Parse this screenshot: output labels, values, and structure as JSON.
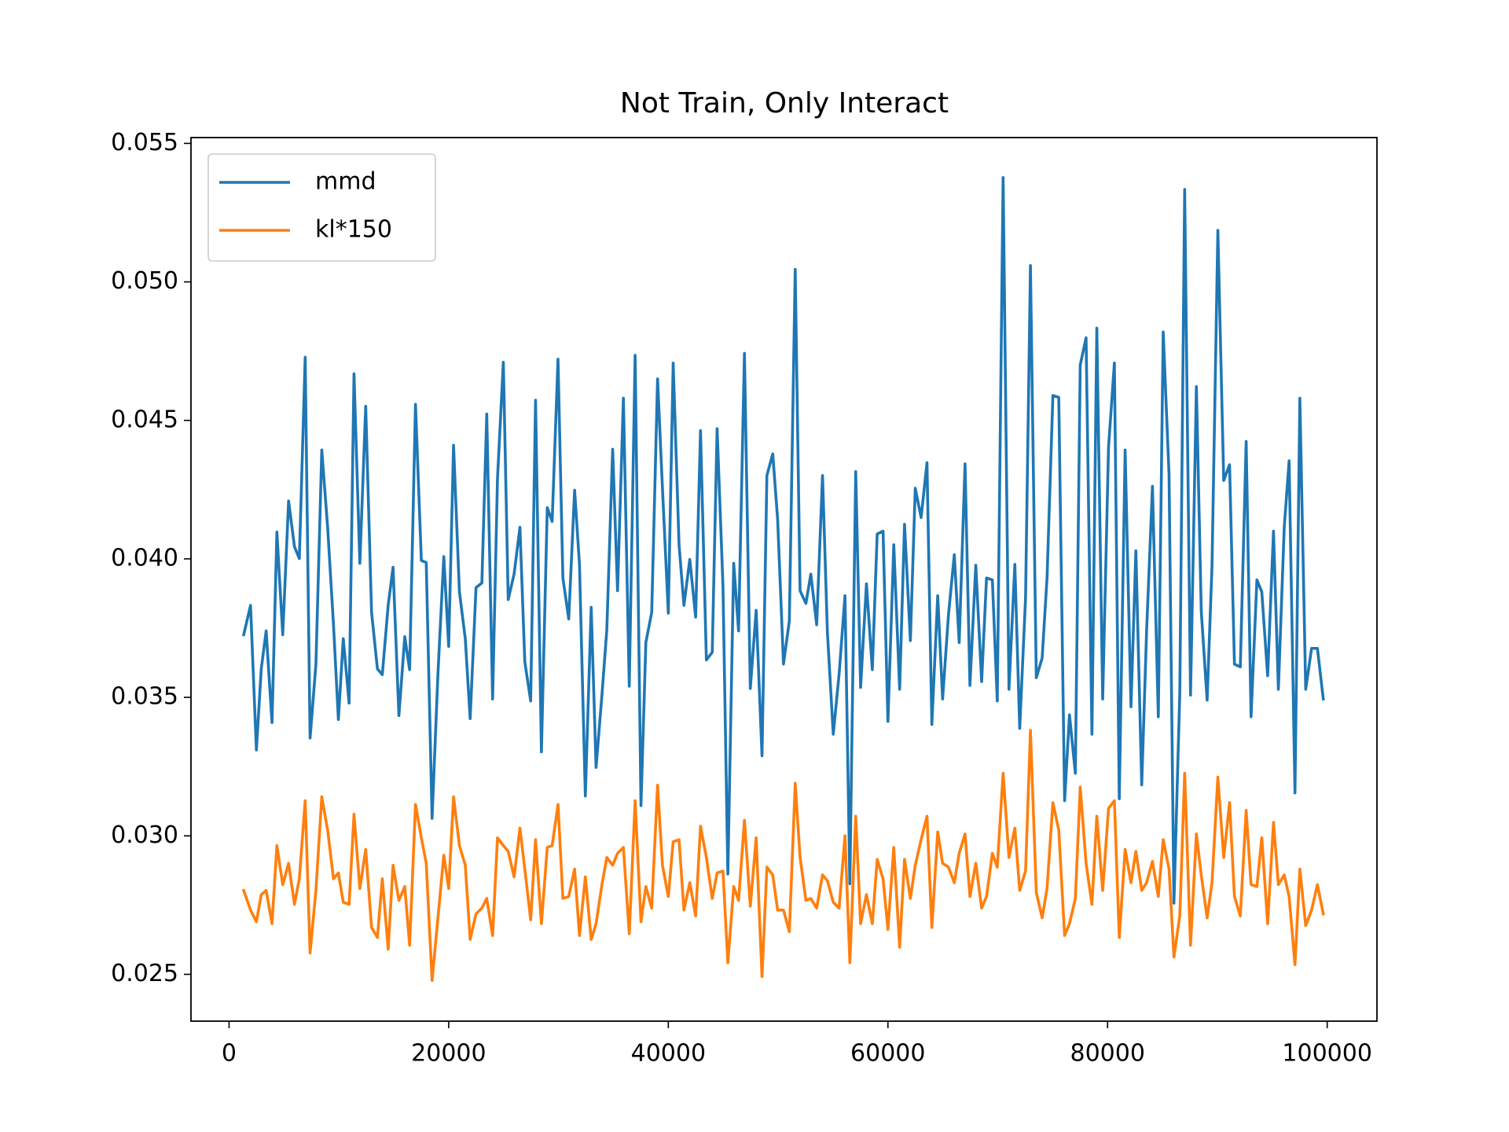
{
  "chart_data": {
    "type": "line",
    "title": "Not Train, Only Interact",
    "x": [
      1333,
      1956,
      2489,
      2933,
      3378,
      3911,
      4356,
      4889,
      5422,
      5956,
      6400,
      6933,
      7378,
      7911,
      8444,
      8978,
      9511,
      9956,
      10400,
      10933,
      11378,
      11911,
      12444,
      12978,
      13511,
      13956,
      14489,
      14933,
      15467,
      16000,
      16444,
      16978,
      17511,
      17956,
      18489,
      19022,
      19556,
      20000,
      20444,
      20978,
      21511,
      21956,
      22489,
      23022,
      23467,
      24000,
      24444,
      24978,
      25422,
      25956,
      26489,
      26933,
      27467,
      27911,
      28444,
      28978,
      29422,
      29956,
      30400,
      30933,
      31467,
      31911,
      32444,
      32978,
      33422,
      33956,
      34400,
      34933,
      35378,
      35911,
      36444,
      36978,
      37511,
      37956,
      38489,
      39022,
      39467,
      40000,
      40444,
      40978,
      41422,
      41956,
      42489,
      42933,
      43467,
      44000,
      44444,
      44978,
      45422,
      45956,
      46400,
      46933,
      47467,
      48000,
      48533,
      48978,
      49511,
      49956,
      50489,
      51022,
      51556,
      52000,
      52533,
      52978,
      53511,
      54044,
      54489,
      55022,
      55556,
      56089,
      56533,
      57067,
      57511,
      58044,
      58578,
      59022,
      59556,
      60000,
      60533,
      61067,
      61511,
      62044,
      62489,
      63022,
      63556,
      64000,
      64533,
      64978,
      65511,
      66044,
      66489,
      67022,
      67467,
      68000,
      68533,
      68978,
      69511,
      69956,
      70489,
      71022,
      71556,
      72000,
      72533,
      72978,
      73511,
      74044,
      74489,
      75022,
      75556,
      76089,
      76533,
      77067,
      77511,
      78044,
      78578,
      79022,
      79556,
      80089,
      80622,
      81067,
      81600,
      82133,
      82578,
      83111,
      83556,
      84089,
      84622,
      85067,
      85600,
      86044,
      86578,
      87022,
      87556,
      88089,
      88533,
      89067,
      89511,
      90044,
      90578,
      91111,
      91556,
      92089,
      92622,
      93067,
      93600,
      94044,
      94578,
      95111,
      95556,
      96089,
      96533,
      97067,
      97511,
      98044,
      98578,
      99111,
      99644
    ],
    "series": [
      {
        "name": "mmd",
        "color": "#1f77b4",
        "values": [
          0.03726,
          0.03832,
          0.0331,
          0.03603,
          0.0374,
          0.03409,
          0.04097,
          0.03726,
          0.04209,
          0.04044,
          0.04001,
          0.04728,
          0.03353,
          0.0362,
          0.04393,
          0.04114,
          0.03762,
          0.0342,
          0.03712,
          0.03479,
          0.04668,
          0.03984,
          0.04551,
          0.03807,
          0.03603,
          0.03582,
          0.03832,
          0.0397,
          0.03434,
          0.03719,
          0.036,
          0.04558,
          0.03994,
          0.03987,
          0.03063,
          0.03585,
          0.04008,
          0.03684,
          0.0441,
          0.03881,
          0.03712,
          0.03423,
          0.03896,
          0.03913,
          0.04523,
          0.03494,
          0.0429,
          0.0471,
          0.03853,
          0.03945,
          0.04114,
          0.03628,
          0.03487,
          0.04573,
          0.03303,
          0.04185,
          0.04135,
          0.04721,
          0.03931,
          0.03783,
          0.04248,
          0.0398,
          0.03144,
          0.03825,
          0.03247,
          0.03508,
          0.03744,
          0.04396,
          0.03885,
          0.0458,
          0.0354,
          0.04735,
          0.03109,
          0.03698,
          0.03807,
          0.0465,
          0.04255,
          0.03804,
          0.04707,
          0.04051,
          0.03832,
          0.03998,
          0.0379,
          0.04463,
          0.03635,
          0.03663,
          0.0447,
          0.03903,
          0.02862,
          0.03984,
          0.0374,
          0.04742,
          0.03532,
          0.03814,
          0.03289,
          0.04301,
          0.04379,
          0.04142,
          0.0362,
          0.03776,
          0.05045,
          0.03885,
          0.03839,
          0.03945,
          0.03762,
          0.04301,
          0.03734,
          0.03367,
          0.03585,
          0.03867,
          0.02827,
          0.04315,
          0.03536,
          0.0391,
          0.036,
          0.0409,
          0.041,
          0.03413,
          0.04051,
          0.03529,
          0.04125,
          0.03705,
          0.04255,
          0.04149,
          0.04347,
          0.03402,
          0.03867,
          0.03494,
          0.03797,
          0.04015,
          0.03698,
          0.04343,
          0.03543,
          0.03977,
          0.03557,
          0.03931,
          0.03924,
          0.03487,
          0.05377,
          0.03529,
          0.0398,
          0.03388,
          0.0386,
          0.05059,
          0.03571,
          0.03642,
          0.03931,
          0.0459,
          0.04583,
          0.03127,
          0.03437,
          0.03226,
          0.047,
          0.04798,
          0.03367,
          0.04833,
          0.03494,
          0.04403,
          0.04707,
          0.03134,
          0.04393,
          0.03466,
          0.04029,
          0.03184,
          0.0374,
          0.04262,
          0.0343,
          0.04819,
          0.04304,
          0.02757,
          0.03515,
          0.05334,
          0.03508,
          0.04622,
          0.03811,
          0.0349,
          0.03973,
          0.05186,
          0.04283,
          0.0434,
          0.0362,
          0.0361,
          0.04424,
          0.0343,
          0.03924,
          0.03881,
          0.03578,
          0.041,
          0.03529,
          0.04114,
          0.04354,
          0.03155,
          0.0458,
          0.03529,
          0.03677,
          0.03677,
          0.03494
        ]
      },
      {
        "name": "kl*150",
        "color": "#ff7f0e",
        "values": [
          0.02803,
          0.02732,
          0.0269,
          0.02788,
          0.02803,
          0.02683,
          0.02965,
          0.02824,
          0.02901,
          0.02753,
          0.02845,
          0.03127,
          0.02577,
          0.02803,
          0.03141,
          0.03021,
          0.02845,
          0.02866,
          0.0276,
          0.02753,
          0.03078,
          0.0281,
          0.02951,
          0.02669,
          0.02633,
          0.02845,
          0.02591,
          0.02894,
          0.02767,
          0.02817,
          0.02605,
          0.03113,
          0.02993,
          0.02901,
          0.02478,
          0.02704,
          0.0293,
          0.0281,
          0.03141,
          0.02965,
          0.02894,
          0.02626,
          0.02718,
          0.02739,
          0.02774,
          0.0264,
          0.02993,
          0.02965,
          0.02944,
          0.02852,
          0.03028,
          0.0288,
          0.02697,
          0.02986,
          0.02683,
          0.02958,
          0.02965,
          0.03113,
          0.02774,
          0.02781,
          0.0288,
          0.0264,
          0.02852,
          0.02626,
          0.02683,
          0.02824,
          0.02922,
          0.02894,
          0.02937,
          0.02958,
          0.02647,
          0.03127,
          0.0269,
          0.02817,
          0.02739,
          0.03183,
          0.02894,
          0.02781,
          0.02979,
          0.02986,
          0.02732,
          0.02831,
          0.02711,
          0.03035,
          0.02922,
          0.02774,
          0.02866,
          0.02873,
          0.02542,
          0.02817,
          0.02767,
          0.03056,
          0.02746,
          0.02993,
          0.02492,
          0.02887,
          0.02859,
          0.02732,
          0.02732,
          0.02654,
          0.0319,
          0.02922,
          0.02767,
          0.02774,
          0.02739,
          0.02859,
          0.02838,
          0.0276,
          0.02739,
          0.03,
          0.02542,
          0.03071,
          0.02683,
          0.02788,
          0.02683,
          0.02915,
          0.02845,
          0.02662,
          0.02958,
          0.02598,
          0.02915,
          0.02774,
          0.02894,
          0.02986,
          0.03071,
          0.02669,
          0.03014,
          0.02901,
          0.02887,
          0.02831,
          0.02937,
          0.03007,
          0.02781,
          0.02901,
          0.02739,
          0.02781,
          0.02937,
          0.02887,
          0.03226,
          0.02922,
          0.03028,
          0.02803,
          0.02873,
          0.03381,
          0.02796,
          0.02704,
          0.0281,
          0.0312,
          0.03021,
          0.0264,
          0.02683,
          0.02774,
          0.03176,
          0.02901,
          0.02753,
          0.03071,
          0.02803,
          0.03099,
          0.03127,
          0.02633,
          0.02951,
          0.02831,
          0.02944,
          0.02803,
          0.02831,
          0.02908,
          0.02781,
          0.02986,
          0.0288,
          0.02563,
          0.02711,
          0.03226,
          0.02605,
          0.03007,
          0.02859,
          0.02704,
          0.02831,
          0.03212,
          0.02922,
          0.0312,
          0.02781,
          0.02711,
          0.03092,
          0.02824,
          0.02817,
          0.02993,
          0.02683,
          0.03049,
          0.02824,
          0.02859,
          0.02781,
          0.02535,
          0.0288,
          0.02676,
          0.02732,
          0.02824,
          0.02718
        ]
      }
    ],
    "xlim": [
      -3467,
      104533
    ],
    "ylim": [
      0.02331,
      0.05521
    ],
    "xticks": [
      0,
      20000,
      40000,
      60000,
      80000,
      100000
    ],
    "yticks": [
      0.025,
      {
        "value": 0.03,
        "label": "0.030"
      },
      0.035,
      {
        "value": 0.04,
        "label": "0.040"
      },
      0.045,
      {
        "value": 0.05,
        "label": "0.050"
      },
      0.055
    ],
    "grid": false,
    "legend": "upper-left"
  }
}
